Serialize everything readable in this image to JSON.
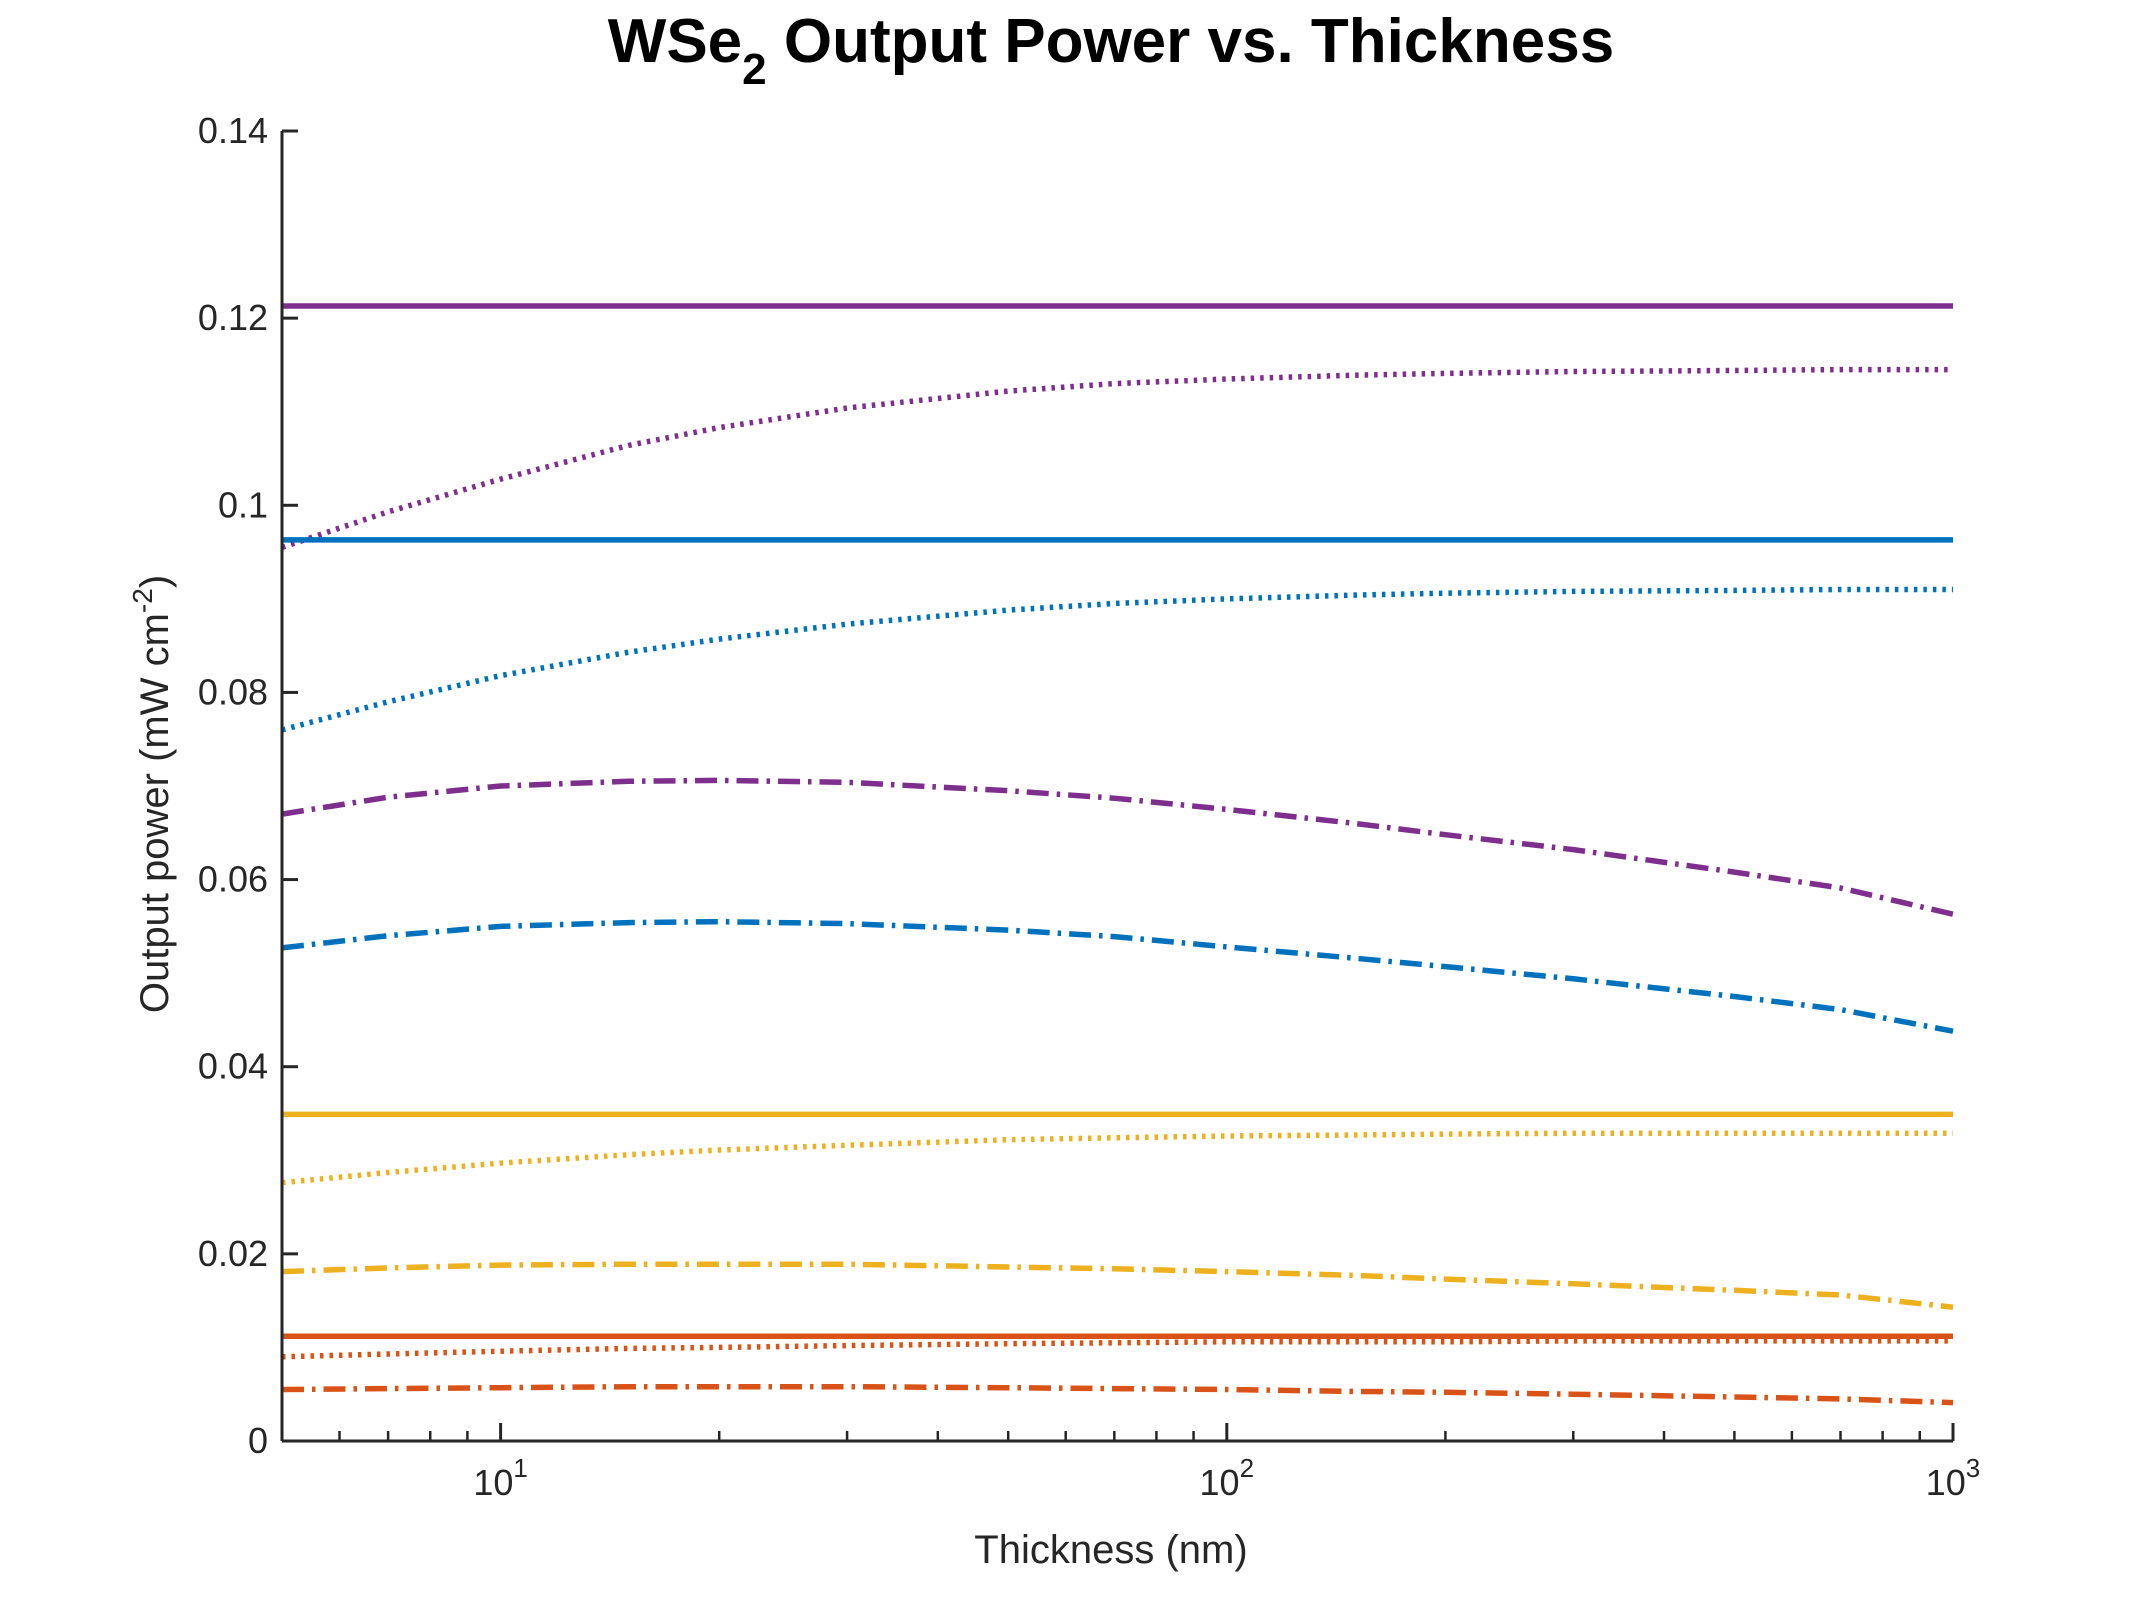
{
  "chart_data": {
    "type": "line",
    "title": "WSe2 Output Power vs. Thickness",
    "title_parts": {
      "main": "WSe",
      "subscript": "2",
      "rest": " Output Power vs. Thickness"
    },
    "xlabel": "Thickness (nm)",
    "ylabel": "Output power (mW cm-2)",
    "ylabel_parts": {
      "main": "Output power (mW cm",
      "superscript": "-2",
      "rest": ")"
    },
    "x_scale": "log",
    "xlim": [
      5,
      1000
    ],
    "ylim": [
      0,
      0.14
    ],
    "grid": false,
    "legend": "none",
    "x_ticks": [
      {
        "value": 10,
        "base": "10",
        "exponent": "1"
      },
      {
        "value": 100,
        "base": "10",
        "exponent": "2"
      },
      {
        "value": 1000,
        "base": "10",
        "exponent": "3"
      }
    ],
    "y_ticks": [
      {
        "value": 0,
        "label": "0"
      },
      {
        "value": 0.02,
        "label": "0.02"
      },
      {
        "value": 0.04,
        "label": "0.04"
      },
      {
        "value": 0.06,
        "label": "0.06"
      },
      {
        "value": 0.08,
        "label": "0.08"
      },
      {
        "value": 0.1,
        "label": "0.1"
      },
      {
        "value": 0.12,
        "label": "0.12"
      },
      {
        "value": 0.14,
        "label": "0.14"
      }
    ],
    "x": [
      5,
      7,
      10,
      15,
      20,
      30,
      50,
      70,
      100,
      150,
      200,
      300,
      500,
      700,
      1000
    ],
    "series": [
      {
        "color": "#7E2F8E",
        "style": "solid",
        "values": [
          0.1213,
          0.1213,
          0.1213,
          0.1213,
          0.1213,
          0.1213,
          0.1213,
          0.1213,
          0.1213,
          0.1213,
          0.1213,
          0.1213,
          0.1213,
          0.1213,
          0.1213
        ]
      },
      {
        "color": "#7E2F8E",
        "style": "dotted",
        "values": [
          0.0955,
          0.0993,
          0.1028,
          0.1064,
          0.1083,
          0.1104,
          0.1122,
          0.113,
          0.1135,
          0.1139,
          0.1141,
          0.1143,
          0.1144,
          0.1145,
          0.1145
        ]
      },
      {
        "color": "#7E2F8E",
        "style": "dashdot",
        "values": [
          0.067,
          0.0688,
          0.07,
          0.0705,
          0.0706,
          0.0704,
          0.0695,
          0.0687,
          0.0675,
          0.066,
          0.0648,
          0.0632,
          0.0608,
          0.0591,
          0.0563
        ]
      },
      {
        "color": "#0072BD",
        "style": "solid",
        "values": [
          0.0963,
          0.0963,
          0.0963,
          0.0963,
          0.0963,
          0.0963,
          0.0963,
          0.0963,
          0.0963,
          0.0963,
          0.0963,
          0.0963,
          0.0963,
          0.0963,
          0.0963
        ]
      },
      {
        "color": "#0072BD",
        "style": "dotted",
        "values": [
          0.076,
          0.079,
          0.0818,
          0.0843,
          0.0857,
          0.0873,
          0.0888,
          0.0895,
          0.09,
          0.0904,
          0.0906,
          0.0908,
          0.0909,
          0.091,
          0.091
        ]
      },
      {
        "color": "#0072BD",
        "style": "dashdot",
        "values": [
          0.0527,
          0.054,
          0.055,
          0.0554,
          0.0555,
          0.0553,
          0.0546,
          0.0539,
          0.0528,
          0.0516,
          0.0507,
          0.0494,
          0.0475,
          0.0461,
          0.0438
        ]
      },
      {
        "color": "#EDB120",
        "style": "solid",
        "values": [
          0.0349,
          0.0349,
          0.0349,
          0.0349,
          0.0349,
          0.0349,
          0.0349,
          0.0349,
          0.0349,
          0.0349,
          0.0349,
          0.0349,
          0.0349,
          0.0349,
          0.0349
        ]
      },
      {
        "color": "#EDB120",
        "style": "dotted",
        "values": [
          0.0276,
          0.0287,
          0.0297,
          0.0306,
          0.0311,
          0.0316,
          0.0322,
          0.0324,
          0.0326,
          0.0327,
          0.0328,
          0.0329,
          0.0329,
          0.0329,
          0.0329
        ]
      },
      {
        "color": "#EDB120",
        "style": "dashdot",
        "values": [
          0.0181,
          0.0185,
          0.0188,
          0.0189,
          0.0189,
          0.0189,
          0.0186,
          0.0184,
          0.0181,
          0.0177,
          0.0173,
          0.0168,
          0.0161,
          0.0156,
          0.0143
        ]
      },
      {
        "color": "#D95319",
        "style": "solid",
        "values": [
          0.0112,
          0.0112,
          0.0112,
          0.0112,
          0.0112,
          0.0112,
          0.0112,
          0.0112,
          0.0112,
          0.0112,
          0.0112,
          0.0112,
          0.0112,
          0.0112,
          0.0112
        ]
      },
      {
        "color": "#D95319",
        "style": "dotted",
        "values": [
          0.009,
          0.0093,
          0.0096,
          0.0099,
          0.01,
          0.0102,
          0.0104,
          0.0105,
          0.0106,
          0.0106,
          0.0106,
          0.0107,
          0.0107,
          0.0107,
          0.0107
        ]
      },
      {
        "color": "#D95319",
        "style": "dashdot",
        "values": [
          0.0055,
          0.0056,
          0.0057,
          0.0058,
          0.0058,
          0.0058,
          0.0057,
          0.0056,
          0.0055,
          0.0053,
          0.0052,
          0.005,
          0.0047,
          0.0045,
          0.0041
        ]
      }
    ]
  }
}
